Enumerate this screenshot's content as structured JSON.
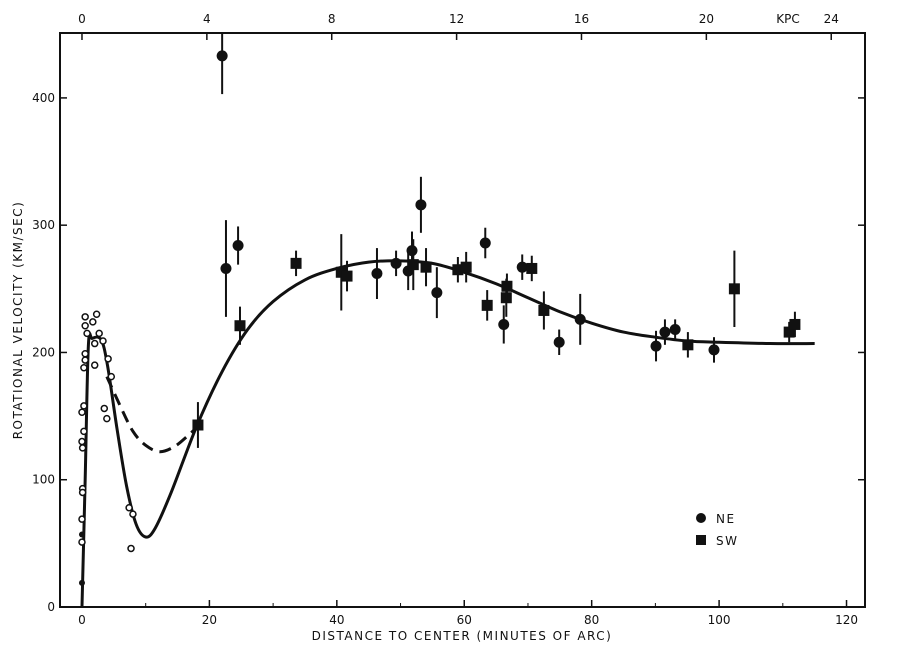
{
  "chart_data": {
    "type": "scatter",
    "title": "",
    "xlabel": "DISTANCE TO CENTER (MINUTES OF ARC)",
    "ylabel": "ROTATIONAL VELOCITY (KM/SEC)",
    "xlim": [
      -3.45,
      122.9
    ],
    "ylim": [
      0,
      451
    ],
    "xticks": [
      0,
      20,
      40,
      60,
      80,
      100,
      120
    ],
    "yticks": [
      0,
      100,
      200,
      300,
      400
    ],
    "top_axis": {
      "unit_label": "KPC",
      "ticks": [
        0,
        4,
        8,
        12,
        16,
        20,
        24
      ],
      "arcmin_per_kpc": 4.9
    },
    "grid": false,
    "legend": {
      "placement": "lower-right",
      "entries": [
        {
          "label": "NE",
          "marker": "filled-circle"
        },
        {
          "label": "SW",
          "marker": "filled-square"
        }
      ]
    },
    "series": [
      {
        "name": "NE",
        "marker": "filled-circle",
        "points": [
          [
            22.0,
            433,
            30
          ],
          [
            22.6,
            266,
            38
          ],
          [
            24.5,
            284,
            15
          ],
          [
            46.3,
            262,
            20
          ],
          [
            49.3,
            270,
            10
          ],
          [
            51.2,
            264,
            15
          ],
          [
            51.8,
            280,
            15
          ],
          [
            53.2,
            316,
            22
          ],
          [
            55.7,
            247,
            20
          ],
          [
            63.3,
            286,
            12
          ],
          [
            66.2,
            222,
            15
          ],
          [
            69.1,
            267,
            10
          ],
          [
            74.9,
            208,
            10
          ],
          [
            78.2,
            226,
            20
          ],
          [
            90.1,
            205,
            12
          ],
          [
            91.5,
            216,
            10
          ],
          [
            93.1,
            218,
            8
          ],
          [
            99.2,
            202,
            10
          ]
        ]
      },
      {
        "name": "SW",
        "marker": "filled-square",
        "points": [
          [
            18.2,
            143,
            18
          ],
          [
            24.8,
            221,
            15
          ],
          [
            33.6,
            270,
            10
          ],
          [
            40.7,
            263,
            30
          ],
          [
            41.6,
            260,
            12
          ],
          [
            52.0,
            269,
            20
          ],
          [
            54.0,
            267,
            15
          ],
          [
            59.0,
            265,
            10
          ],
          [
            60.3,
            267,
            12
          ],
          [
            63.6,
            237,
            12
          ],
          [
            66.6,
            243,
            15
          ],
          [
            66.7,
            252,
            10
          ],
          [
            70.6,
            266,
            10
          ],
          [
            72.5,
            233,
            15
          ],
          [
            95.1,
            206,
            10
          ],
          [
            102.4,
            250,
            30
          ],
          [
            111.0,
            216,
            8
          ],
          [
            111.9,
            222,
            10
          ]
        ]
      },
      {
        "name": "inner-optical",
        "marker": "open-circle",
        "points": [
          [
            0.5,
            228
          ],
          [
            2.3,
            230
          ],
          [
            0.5,
            221
          ],
          [
            1.7,
            224
          ],
          [
            0.8,
            215
          ],
          [
            2.7,
            215
          ],
          [
            2.0,
            207
          ],
          [
            3.3,
            209
          ],
          [
            0.5,
            199
          ],
          [
            0.5,
            194
          ],
          [
            0.3,
            188
          ],
          [
            2.0,
            190
          ],
          [
            4.1,
            195
          ],
          [
            4.6,
            181
          ],
          [
            3.5,
            156
          ],
          [
            3.9,
            148
          ],
          [
            0.3,
            158
          ],
          [
            0.0,
            153
          ],
          [
            0.3,
            138
          ],
          [
            0.0,
            130
          ],
          [
            0.1,
            125
          ],
          [
            0.1,
            93
          ],
          [
            0.1,
            90
          ],
          [
            0.0,
            69
          ],
          [
            0.0,
            51
          ],
          [
            7.4,
            78
          ],
          [
            8.0,
            73
          ],
          [
            7.7,
            46
          ]
        ]
      },
      {
        "name": "inner-filled",
        "marker": "small-filled-circle",
        "points": [
          [
            0.0,
            57
          ],
          [
            0.0,
            19
          ]
        ]
      }
    ],
    "curves": [
      {
        "name": "rotation-curve-fit",
        "style": "solid",
        "points": [
          [
            0,
            0
          ],
          [
            0.5,
            100
          ],
          [
            1,
            205
          ],
          [
            1.6,
            211
          ],
          [
            3,
            210
          ],
          [
            4,
            190
          ],
          [
            5.5,
            140
          ],
          [
            7,
            95
          ],
          [
            8.5,
            65
          ],
          [
            10,
            55
          ],
          [
            11.5,
            62
          ],
          [
            14,
            90
          ],
          [
            18,
            142
          ],
          [
            22,
            185
          ],
          [
            26,
            218
          ],
          [
            30,
            240
          ],
          [
            35,
            257
          ],
          [
            40,
            266
          ],
          [
            45,
            271
          ],
          [
            50,
            272
          ],
          [
            55,
            270
          ],
          [
            60,
            263
          ],
          [
            65,
            254
          ],
          [
            70,
            243
          ],
          [
            75,
            232
          ],
          [
            80,
            223
          ],
          [
            85,
            216
          ],
          [
            90,
            212
          ],
          [
            95,
            209
          ],
          [
            100,
            208
          ],
          [
            108,
            207
          ],
          [
            115,
            207
          ]
        ]
      },
      {
        "name": "alternate-inner-fit",
        "style": "dashed",
        "points": [
          [
            3.9,
            181
          ],
          [
            6,
            158
          ],
          [
            8,
            138
          ],
          [
            10,
            127
          ],
          [
            12.2,
            122
          ],
          [
            14.5,
            126
          ],
          [
            16.5,
            134
          ],
          [
            18.2,
            142
          ]
        ]
      }
    ]
  }
}
